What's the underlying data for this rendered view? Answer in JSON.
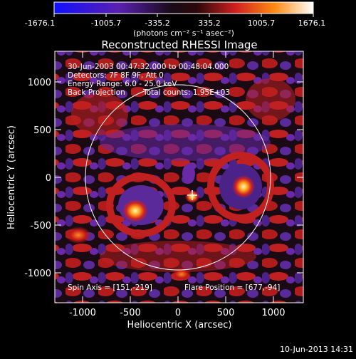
{
  "colorbar": {
    "ticks": [
      "-1676.1",
      "-1005.7",
      "-335.2",
      "335.2",
      "1005.7",
      "1676.1"
    ],
    "unit_label": "(photons cm⁻² s⁻¹ asec⁻²)"
  },
  "title": "Reconstructed RHESSI Image",
  "info": {
    "time": "30-Jun-2003 00:47:32.000 to 00:48:04.000",
    "detectors": "Detectors: 7F 8F 9F, Att 0",
    "energy": "Energy Range: 6.0 - 25.0 keV",
    "method": "Back Projection",
    "counts": "Total counts: 1.95E+03"
  },
  "footer_labels": {
    "spin_axis": "Spin Axis = [151,-219]",
    "flare_position": "Flare Position = [677,-94]"
  },
  "axes": {
    "xlabel": "Heliocentric X (arcsec)",
    "ylabel": "Heliocentric Y (arcsec)",
    "xticks": [
      "-1000",
      "-500",
      "0",
      "500",
      "1000"
    ],
    "yticks": [
      "1000",
      "500",
      "0",
      "-500",
      "-1000"
    ]
  },
  "timestamp": "10-Jun-2013 14:31",
  "colors": {
    "background": "#000000",
    "colormap": [
      "#0000ff",
      "#3a10a0",
      "#6a2aa8",
      "#111111",
      "#cc2222",
      "#ff6600",
      "#ffee66",
      "#ffffff"
    ]
  }
}
